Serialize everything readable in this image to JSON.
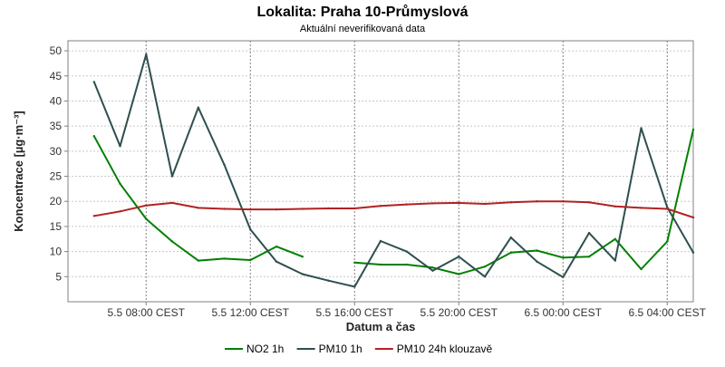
{
  "chart_data": {
    "type": "line",
    "title": "Lokalita: Praha 10-Průmyslová",
    "subtitle": "Aktuální neverifikovaná data",
    "xlabel": "Datum a čas",
    "ylabel": "Koncentrace [µg·m⁻³]",
    "ylim": [
      0,
      52
    ],
    "yticks": [
      5,
      10,
      15,
      20,
      25,
      30,
      35,
      40,
      45,
      50
    ],
    "xlim": [
      5.0,
      29.0
    ],
    "x_unit": "hours from 5.5 00:00 CEST",
    "xticks": [
      {
        "x": 8,
        "label": "5.5 08:00 CEST"
      },
      {
        "x": 12,
        "label": "5.5 12:00 CEST"
      },
      {
        "x": 16,
        "label": "5.5 16:00 CEST"
      },
      {
        "x": 20,
        "label": "5.5 20:00 CEST"
      },
      {
        "x": 24,
        "label": "6.5 00:00 CEST"
      },
      {
        "x": 28,
        "label": "6.5 04:00 CEST"
      }
    ],
    "grid": true,
    "legend_position": "bottom",
    "series": [
      {
        "name": "NO2 1h",
        "color": "#008000",
        "points": [
          [
            6,
            33.0
          ],
          [
            7,
            23.5
          ],
          [
            8,
            16.5
          ],
          [
            9,
            12.0
          ],
          [
            10,
            8.2
          ],
          [
            11,
            8.6
          ],
          [
            12,
            8.3
          ],
          [
            13,
            11.0
          ],
          [
            14,
            9.0
          ],
          null,
          [
            16,
            7.8
          ],
          [
            17,
            7.4
          ],
          [
            18,
            7.4
          ],
          [
            19,
            6.8
          ],
          [
            20,
            5.5
          ],
          [
            21,
            7.0
          ],
          [
            22,
            9.8
          ],
          [
            23,
            10.2
          ],
          [
            24,
            8.8
          ],
          [
            25,
            9.0
          ],
          [
            26,
            12.5
          ],
          [
            27,
            6.5
          ],
          [
            28,
            12.0
          ],
          [
            29,
            34.3
          ]
        ]
      },
      {
        "name": "PM10 1h",
        "color": "#2f4f4f",
        "points": [
          [
            6,
            43.8
          ],
          [
            7,
            31.0
          ],
          [
            8,
            49.3
          ],
          [
            9,
            25.0
          ],
          [
            10,
            38.7
          ],
          [
            11,
            27.3
          ],
          [
            12,
            14.4
          ],
          [
            13,
            8.0
          ],
          [
            14,
            5.5
          ],
          [
            15,
            4.2
          ],
          [
            16,
            3.0
          ],
          [
            17,
            12.1
          ],
          [
            18,
            10.0
          ],
          [
            19,
            6.2
          ],
          [
            20,
            9.0
          ],
          [
            21,
            5.0
          ],
          [
            22,
            12.8
          ],
          [
            23,
            8.0
          ],
          [
            24,
            4.9
          ],
          [
            25,
            13.7
          ],
          [
            26,
            8.2
          ],
          [
            27,
            34.6
          ],
          [
            28,
            18.8
          ],
          [
            29,
            9.8
          ]
        ]
      },
      {
        "name": "PM10 24h klouzavě",
        "color": "#b22222",
        "points": [
          [
            6,
            17.1
          ],
          [
            7,
            18.0
          ],
          [
            8,
            19.2
          ],
          [
            9,
            19.7
          ],
          [
            10,
            18.7
          ],
          [
            11,
            18.5
          ],
          [
            12,
            18.4
          ],
          [
            13,
            18.4
          ],
          [
            14,
            18.5
          ],
          [
            15,
            18.6
          ],
          [
            16,
            18.6
          ],
          [
            17,
            19.1
          ],
          [
            18,
            19.4
          ],
          [
            19,
            19.6
          ],
          [
            20,
            19.7
          ],
          [
            21,
            19.5
          ],
          [
            22,
            19.8
          ],
          [
            23,
            20.0
          ],
          [
            24,
            20.0
          ],
          [
            25,
            19.8
          ],
          [
            26,
            19.0
          ],
          [
            27,
            18.7
          ],
          [
            28,
            18.5
          ],
          [
            29,
            16.8
          ]
        ]
      }
    ]
  }
}
